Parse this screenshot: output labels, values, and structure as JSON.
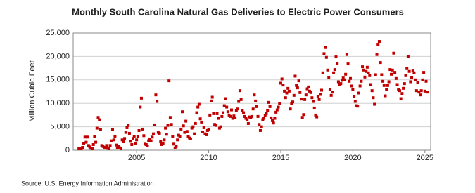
{
  "chart_data": {
    "type": "scatter",
    "title": "Monthly South Carolina Natural Gas Deliveries to Electric Power Consumers",
    "y_label": "Million Cubic Feet",
    "source": "Source: U.S. Energy Information Administration",
    "color": "#c00000",
    "grid": true,
    "xlim": [
      2000.6,
      2025.4
    ],
    "xticks": [
      2005,
      2010,
      2015,
      2020,
      2025
    ],
    "ylim": [
      0,
      25000
    ],
    "yticks": [
      0,
      {
        "value": 5000,
        "label": "5,000"
      },
      {
        "value": 10000,
        "label": "10,000"
      },
      {
        "value": 15000,
        "label": "15,000"
      },
      {
        "value": 20000,
        "label": "20,000"
      },
      {
        "value": 25000,
        "label": "25,000"
      }
    ],
    "x": [
      2001,
      2001.083,
      2001.167,
      2001.25,
      2001.333,
      2001.417,
      2001.5,
      2001.583,
      2001.667,
      2001.75,
      2001.833,
      2001.917,
      2002,
      2002.083,
      2002.167,
      2002.25,
      2002.333,
      2002.417,
      2002.5,
      2002.583,
      2002.667,
      2002.75,
      2002.833,
      2002.917,
      2003,
      2003.083,
      2003.167,
      2003.25,
      2003.333,
      2003.417,
      2003.5,
      2003.583,
      2003.667,
      2003.75,
      2003.833,
      2003.917,
      2004,
      2004.083,
      2004.167,
      2004.25,
      2004.333,
      2004.417,
      2004.5,
      2004.583,
      2004.667,
      2004.75,
      2004.833,
      2004.917,
      2005,
      2005.083,
      2005.167,
      2005.25,
      2005.333,
      2005.417,
      2005.5,
      2005.583,
      2005.667,
      2005.75,
      2005.833,
      2005.917,
      2006,
      2006.083,
      2006.167,
      2006.25,
      2006.333,
      2006.417,
      2006.5,
      2006.583,
      2006.667,
      2006.75,
      2006.833,
      2006.917,
      2007,
      2007.083,
      2007.167,
      2007.25,
      2007.333,
      2007.417,
      2007.5,
      2007.583,
      2007.667,
      2007.75,
      2007.833,
      2007.917,
      2008,
      2008.083,
      2008.167,
      2008.25,
      2008.333,
      2008.417,
      2008.5,
      2008.583,
      2008.667,
      2008.75,
      2008.833,
      2008.917,
      2009,
      2009.083,
      2009.167,
      2009.25,
      2009.333,
      2009.417,
      2009.5,
      2009.583,
      2009.667,
      2009.75,
      2009.833,
      2009.917,
      2010,
      2010.083,
      2010.167,
      2010.25,
      2010.333,
      2010.417,
      2010.5,
      2010.583,
      2010.667,
      2010.75,
      2010.833,
      2010.917,
      2011,
      2011.083,
      2011.167,
      2011.25,
      2011.333,
      2011.417,
      2011.5,
      2011.583,
      2011.667,
      2011.75,
      2011.833,
      2011.917,
      2012,
      2012.083,
      2012.167,
      2012.25,
      2012.333,
      2012.417,
      2012.5,
      2012.583,
      2012.667,
      2012.75,
      2012.833,
      2012.917,
      2013,
      2013.083,
      2013.167,
      2013.25,
      2013.333,
      2013.417,
      2013.5,
      2013.583,
      2013.667,
      2013.75,
      2013.833,
      2013.917,
      2014,
      2014.083,
      2014.167,
      2014.25,
      2014.333,
      2014.417,
      2014.5,
      2014.583,
      2014.667,
      2014.75,
      2014.833,
      2014.917,
      2015,
      2015.083,
      2015.167,
      2015.25,
      2015.333,
      2015.417,
      2015.5,
      2015.583,
      2015.667,
      2015.75,
      2015.833,
      2015.917,
      2016,
      2016.083,
      2016.167,
      2016.25,
      2016.333,
      2016.417,
      2016.5,
      2016.583,
      2016.667,
      2016.75,
      2016.833,
      2016.917,
      2017,
      2017.083,
      2017.167,
      2017.25,
      2017.333,
      2017.417,
      2017.5,
      2017.583,
      2017.667,
      2017.75,
      2017.833,
      2017.917,
      2018,
      2018.083,
      2018.167,
      2018.25,
      2018.333,
      2018.417,
      2018.5,
      2018.583,
      2018.667,
      2018.75,
      2018.833,
      2018.917,
      2019,
      2019.083,
      2019.167,
      2019.25,
      2019.333,
      2019.417,
      2019.5,
      2019.583,
      2019.667,
      2019.75,
      2019.833,
      2019.917,
      2020,
      2020.083,
      2020.167,
      2020.25,
      2020.333,
      2020.417,
      2020.5,
      2020.583,
      2020.667,
      2020.75,
      2020.833,
      2020.917,
      2021,
      2021.083,
      2021.167,
      2021.25,
      2021.333,
      2021.417,
      2021.5,
      2021.583,
      2021.667,
      2021.75,
      2021.833,
      2021.917,
      2022,
      2022.083,
      2022.167,
      2022.25,
      2022.333,
      2022.417,
      2022.5,
      2022.583,
      2022.667,
      2022.75,
      2022.833,
      2022.917,
      2023,
      2023.083,
      2023.167,
      2023.25,
      2023.333,
      2023.417,
      2023.5,
      2023.583,
      2023.667,
      2023.75,
      2023.833,
      2023.917,
      2024,
      2024.083,
      2024.167,
      2024.25,
      2024.333,
      2024.417,
      2024.5,
      2024.583,
      2024.667,
      2024.75,
      2024.833,
      2024.917,
      2025,
      2025.083,
      2025.167
    ],
    "values": [
      300,
      400,
      300,
      600,
      1500,
      2800,
      1700,
      2800,
      1000,
      700,
      400,
      300,
      1200,
      2900,
      1700,
      4700,
      7000,
      6500,
      4400,
      1000,
      800,
      500,
      600,
      1000,
      400,
      300,
      1000,
      2000,
      4400,
      2200,
      3000,
      1100,
      500,
      800,
      500,
      300,
      2200,
      1800,
      2500,
      3800,
      4800,
      5300,
      3600,
      1900,
      1200,
      2500,
      2900,
      1500,
      2200,
      2900,
      4200,
      9200,
      11100,
      4500,
      3100,
      1300,
      1200,
      900,
      2000,
      2400,
      2000,
      2800,
      3500,
      5400,
      11800,
      10400,
      3800,
      3600,
      1800,
      1200,
      1400,
      2200,
      4700,
      3400,
      5300,
      14800,
      7000,
      5500,
      2900,
      1300,
      500,
      800,
      2200,
      3200,
      3000,
      4500,
      8200,
      5200,
      3800,
      6200,
      4000,
      2900,
      2600,
      2400,
      4700,
      5000,
      3500,
      5700,
      8000,
      9200,
      9800,
      6700,
      6000,
      3900,
      4800,
      3500,
      3300,
      4200,
      4500,
      7500,
      10500,
      11300,
      7800,
      5500,
      5300,
      7800,
      6800,
      4700,
      5000,
      7200,
      8000,
      9500,
      11000,
      9200,
      8200,
      7500,
      7200,
      8600,
      6800,
      7300,
      6900,
      8500,
      8800,
      10400,
      12700,
      10800,
      8500,
      8000,
      7200,
      6800,
      6500,
      5700,
      7100,
      6900,
      7200,
      8800,
      11800,
      10500,
      9300,
      7200,
      5500,
      4200,
      5000,
      6500,
      6800,
      7400,
      7800,
      8500,
      10200,
      9300,
      6900,
      6300,
      5800,
      6800,
      8100,
      8600,
      9200,
      10000,
      14300,
      15200,
      13900,
      12600,
      11200,
      12200,
      13200,
      12600,
      8800,
      10000,
      10300,
      11700,
      15800,
      13800,
      13300,
      14800,
      12300,
      10900,
      7000,
      7600,
      10800,
      11800,
      13100,
      13500,
      12600,
      12300,
      11200,
      10400,
      9000,
      7500,
      7100,
      11500,
      10800,
      11900,
      12800,
      16500,
      20600,
      21900,
      19800,
      17100,
      15500,
      12900,
      11700,
      12400,
      16500,
      17200,
      19900,
      18500,
      14600,
      14000,
      14200,
      14900,
      15400,
      15000,
      16200,
      20400,
      18400,
      14700,
      15300,
      13700,
      13000,
      11500,
      10400,
      9500,
      9400,
      12200,
      13700,
      14700,
      17800,
      17100,
      15600,
      16800,
      17700,
      16500,
      15900,
      14000,
      12700,
      11200,
      9800,
      16100,
      20400,
      22600,
      23200,
      18700,
      16100,
      14700,
      13800,
      11600,
      12900,
      13800,
      14600,
      17200,
      16200,
      17100,
      20700,
      16600,
      15300,
      14000,
      12900,
      12700,
      11000,
      12100,
      13200,
      14200,
      15900,
      17400,
      20000,
      16800,
      14600,
      15500,
      16900,
      16500,
      15000,
      12700,
      14500,
      12400,
      11800,
      12700,
      15000,
      16600,
      12600,
      14700,
      12400
    ]
  }
}
